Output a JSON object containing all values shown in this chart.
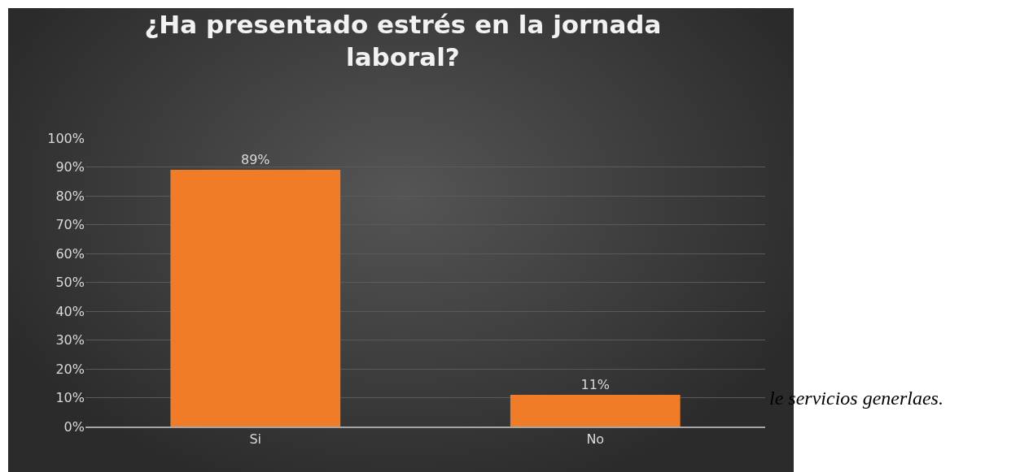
{
  "chart_data": {
    "type": "bar",
    "title": "¿Ha presentado estrés en la jornada laboral?",
    "categories": [
      "Si",
      "No"
    ],
    "values": [
      89,
      11
    ],
    "value_labels": [
      "89%",
      "11%"
    ],
    "color": "#f07c28",
    "ylim": [
      0,
      100
    ],
    "yticks": [
      {
        "value": 0,
        "label": "0%"
      },
      {
        "value": 10,
        "label": "10%"
      },
      {
        "value": 20,
        "label": "20%"
      },
      {
        "value": 30,
        "label": "30%"
      },
      {
        "value": 40,
        "label": "40%"
      },
      {
        "value": 50,
        "label": "50%"
      },
      {
        "value": 60,
        "label": "60%"
      },
      {
        "value": 70,
        "label": "70%"
      },
      {
        "value": 80,
        "label": "80%"
      },
      {
        "value": 90,
        "label": "90%"
      },
      {
        "value": 100,
        "label": "100%"
      }
    ],
    "grid": "y",
    "legend": false,
    "annotations": [
      "le servicios generlaes."
    ]
  }
}
